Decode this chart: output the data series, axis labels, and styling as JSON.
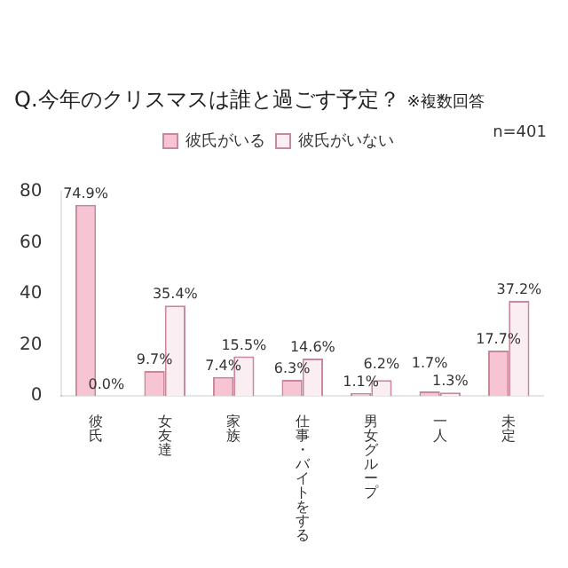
{
  "chart_data": {
    "type": "bar",
    "title": "Q.今年のクリスマスは誰と過ごす予定？",
    "subtitle": "※複数回答",
    "categories": [
      "彼氏",
      "女友達",
      "家族",
      "仕事・バイトをする",
      "男女グループ",
      "一人",
      "未定"
    ],
    "series": [
      {
        "name": "彼氏がいる",
        "color": "#f6c4d2",
        "values": [
          74.9,
          9.7,
          7.4,
          6.3,
          1.1,
          1.7,
          17.7
        ],
        "value_labels": [
          "74.9%",
          "9.7%",
          "7.4%",
          "6.3%",
          "1.1%",
          "1.7%",
          "17.7%"
        ]
      },
      {
        "name": "彼氏がいない",
        "color": "#fbeef2",
        "values": [
          0.0,
          35.4,
          15.5,
          14.6,
          6.2,
          1.3,
          37.2
        ],
        "value_labels": [
          "0.0%",
          "35.4%",
          "15.5%",
          "14.6%",
          "6.2%",
          "1.3%",
          "37.2%"
        ]
      }
    ],
    "ylim": [
      0,
      80
    ],
    "yticks": [
      0,
      20,
      40,
      60,
      80
    ],
    "grid": false,
    "legend": "top right",
    "annotations": [
      "n=401"
    ]
  }
}
